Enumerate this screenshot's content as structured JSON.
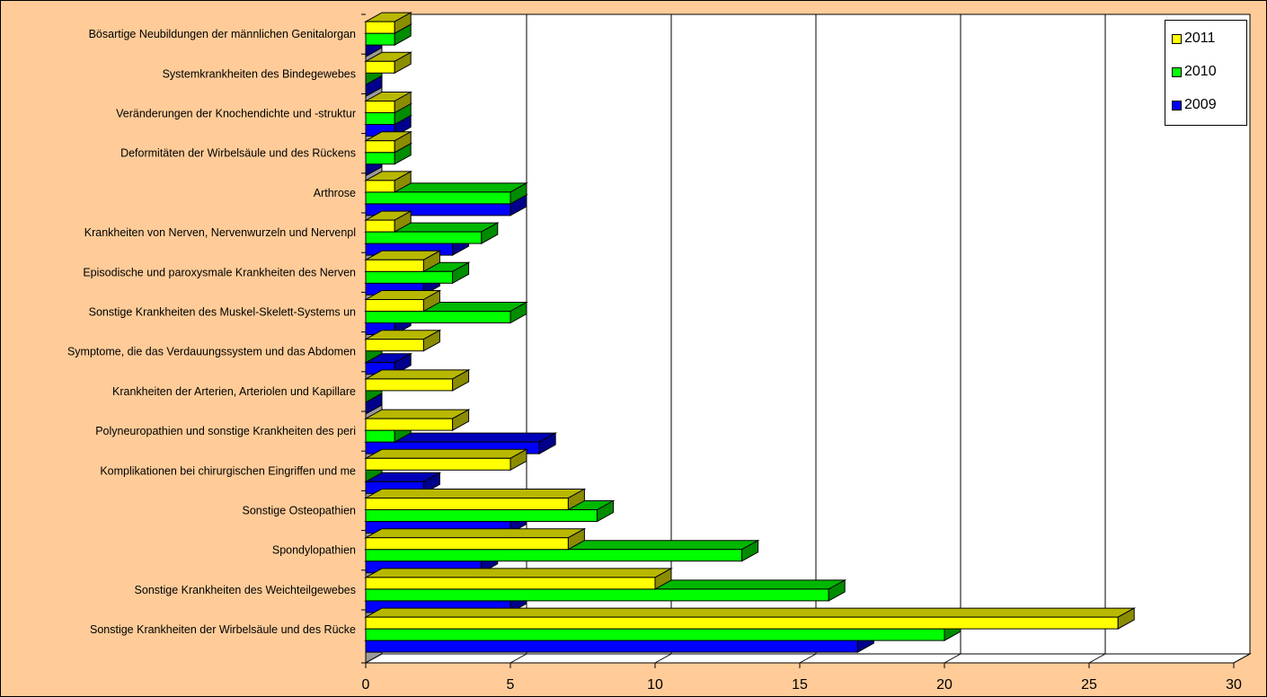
{
  "chart_data": {
    "type": "bar",
    "orientation": "horizontal",
    "categories": [
      "Bösartige Neubildungen der männlichen Genitalorgan",
      "Systemkrankheiten des Bindegewebes",
      "Veränderungen der Knochendichte und -struktur",
      "Deformitäten der Wirbelsäule und des Rückens",
      "Arthrose",
      "Krankheiten von Nerven, Nervenwurzeln und Nervenpl",
      "Episodische und paroxysmale Krankheiten des Nerven",
      "Sonstige Krankheiten des Muskel-Skelett-Systems un",
      "Symptome, die das Verdauungssystem und das Abdomen",
      "Krankheiten der Arterien, Arteriolen und Kapillare",
      "Polyneuropathien und sonstige Krankheiten des peri",
      "Komplikationen bei chirurgischen Eingriffen und me",
      "Sonstige Osteopathien",
      "Spondylopathien",
      "Sonstige Krankheiten des Weichteilgewebes",
      "Sonstige Krankheiten der Wirbelsäule und des Rücke"
    ],
    "series": [
      {
        "name": "2011",
        "color": "#ffff00",
        "values": [
          1,
          1,
          1,
          1,
          1,
          1,
          2,
          2,
          2,
          3,
          3,
          5,
          7,
          7,
          10,
          26
        ]
      },
      {
        "name": "2010",
        "color": "#00ff00",
        "values": [
          1,
          0,
          1,
          1,
          5,
          4,
          3,
          5,
          0,
          0,
          1,
          0,
          8,
          13,
          16,
          20
        ]
      },
      {
        "name": "2009",
        "color": "#0000ff",
        "values": [
          0,
          0,
          1,
          0,
          5,
          3,
          2,
          1,
          1,
          0,
          6,
          2,
          5,
          4,
          5,
          17
        ]
      }
    ],
    "xticks": [
      "0",
      "5",
      "10",
      "15",
      "20",
      "25",
      "30"
    ],
    "xlim": [
      0,
      30
    ],
    "grid": true,
    "legend_position": "top-right"
  },
  "legend": [
    {
      "label": "2011",
      "color": "#ffff00"
    },
    {
      "label": "2010",
      "color": "#00ff00"
    },
    {
      "label": "2009",
      "color": "#0000ff"
    }
  ]
}
